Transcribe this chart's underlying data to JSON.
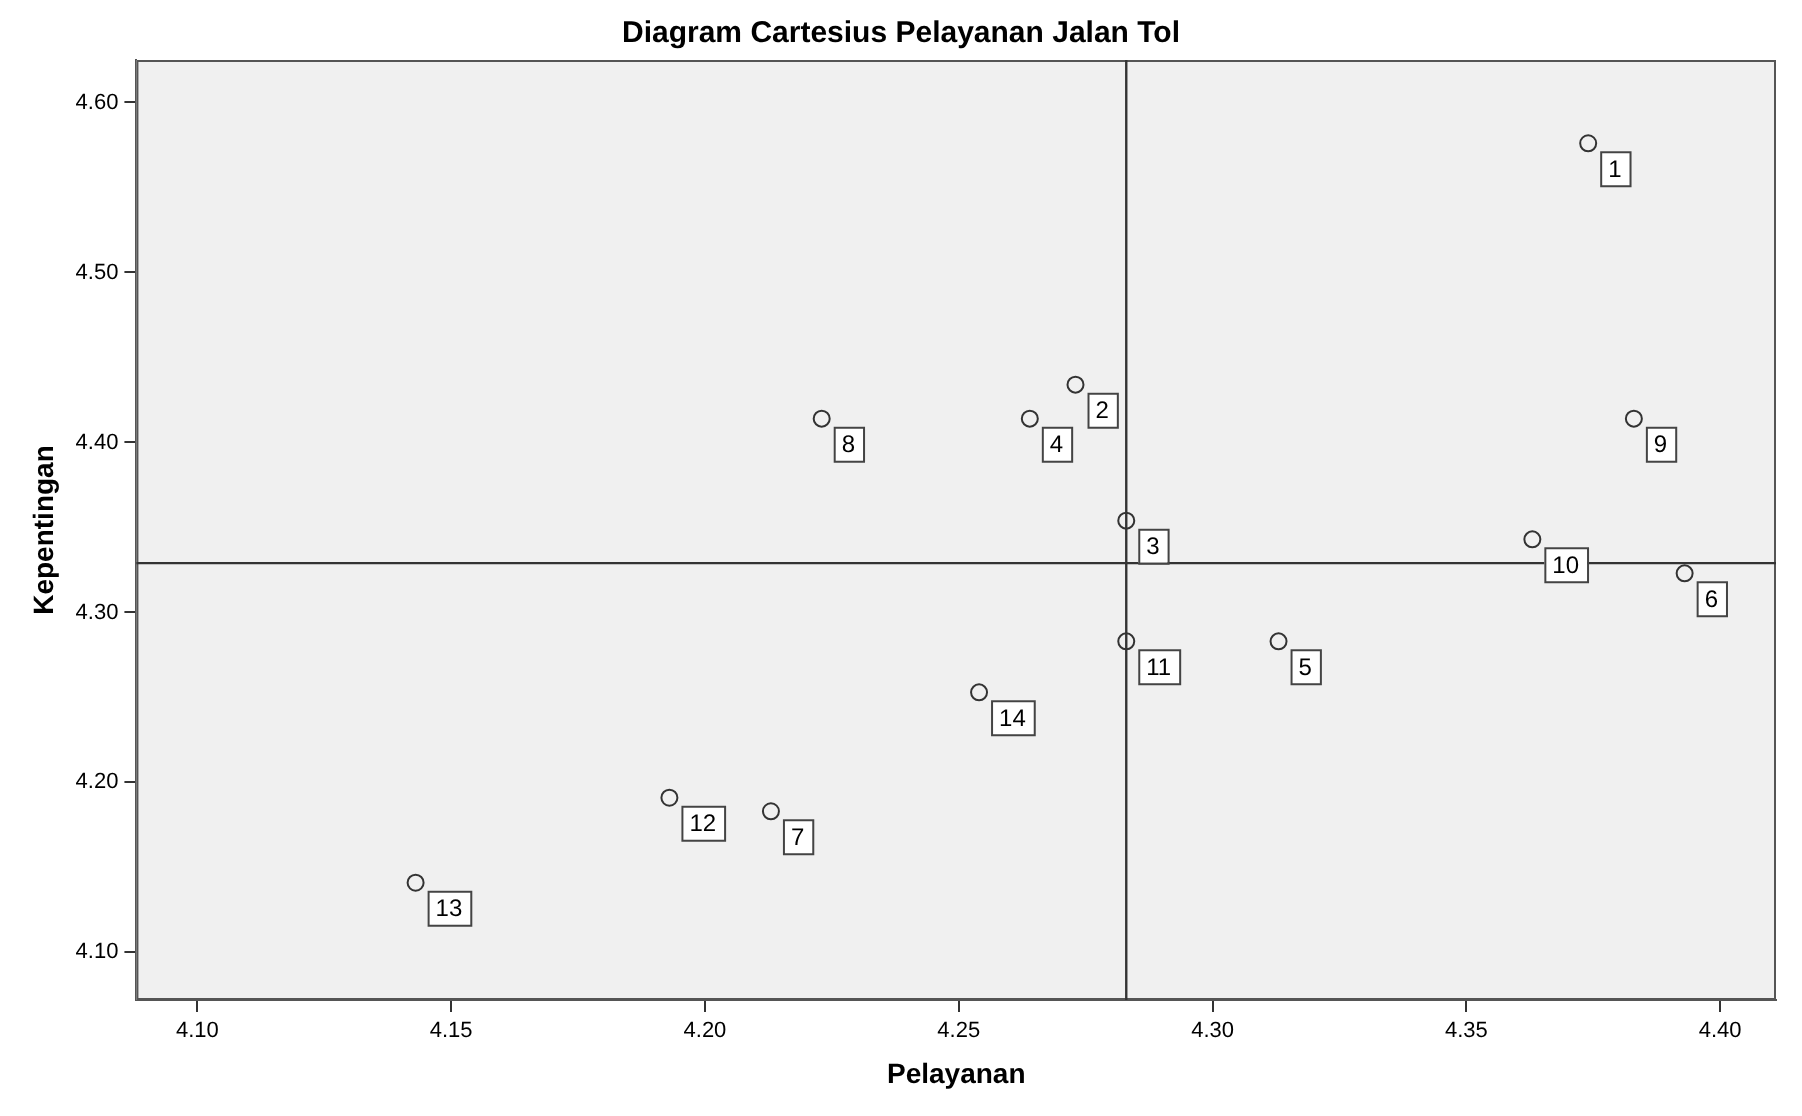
{
  "chart_data": {
    "type": "scatter",
    "title": "Diagram Cartesius Pelayanan Jalan Tol",
    "xlabel": "Pelayanan",
    "ylabel": "Kepentingan",
    "x": [
      4.374,
      4.273,
      4.283,
      4.264,
      4.313,
      4.393,
      4.213,
      4.223,
      4.383,
      4.363,
      4.283,
      4.193,
      4.143,
      4.254
    ],
    "series": [
      {
        "color": "#333333",
        "values": [
          4.576,
          4.434,
          4.354,
          4.414,
          4.283,
          4.323,
          4.183,
          4.414,
          4.414,
          4.343,
          4.283,
          4.191,
          4.141,
          4.253
        ]
      }
    ],
    "marker": "circle",
    "xlim": [
      4.088,
      4.411
    ],
    "ylim": [
      4.072,
      4.625
    ],
    "xticks": [
      {
        "value": 4.1,
        "label": "4.10"
      },
      {
        "value": 4.15,
        "label": "4.15"
      },
      {
        "value": 4.2,
        "label": "4.20"
      },
      {
        "value": 4.25,
        "label": "4.25"
      },
      {
        "value": 4.3,
        "label": "4.30"
      },
      {
        "value": 4.35,
        "label": "4.35"
      },
      {
        "value": 4.4,
        "label": "4.40"
      }
    ],
    "yticks": [
      {
        "value": 4.1,
        "label": "4.10"
      },
      {
        "value": 4.2,
        "label": "4.20"
      },
      {
        "value": 4.3,
        "label": "4.30"
      },
      {
        "value": 4.4,
        "label": "4.40"
      },
      {
        "value": 4.5,
        "label": "4.50"
      },
      {
        "value": 4.6,
        "label": "4.60"
      }
    ],
    "ref_lines": [
      {
        "axis": "x",
        "value": 4.283,
        "color": "#333333"
      },
      {
        "axis": "y",
        "value": 4.329,
        "color": "#333333"
      }
    ],
    "annotations": [
      {
        "text": "1",
        "x": 4.374,
        "y": 4.576
      },
      {
        "text": "2",
        "x": 4.273,
        "y": 4.434
      },
      {
        "text": "3",
        "x": 4.283,
        "y": 4.354
      },
      {
        "text": "4",
        "x": 4.264,
        "y": 4.414
      },
      {
        "text": "5",
        "x": 4.313,
        "y": 4.283
      },
      {
        "text": "6",
        "x": 4.393,
        "y": 4.323
      },
      {
        "text": "7",
        "x": 4.213,
        "y": 4.183
      },
      {
        "text": "8",
        "x": 4.223,
        "y": 4.414
      },
      {
        "text": "9",
        "x": 4.383,
        "y": 4.414
      },
      {
        "text": "10",
        "x": 4.363,
        "y": 4.343
      },
      {
        "text": "11",
        "x": 4.283,
        "y": 4.283
      },
      {
        "text": "12",
        "x": 4.193,
        "y": 4.191
      },
      {
        "text": "13",
        "x": 4.143,
        "y": 4.141
      },
      {
        "text": "14",
        "x": 4.254,
        "y": 4.253
      }
    ]
  }
}
